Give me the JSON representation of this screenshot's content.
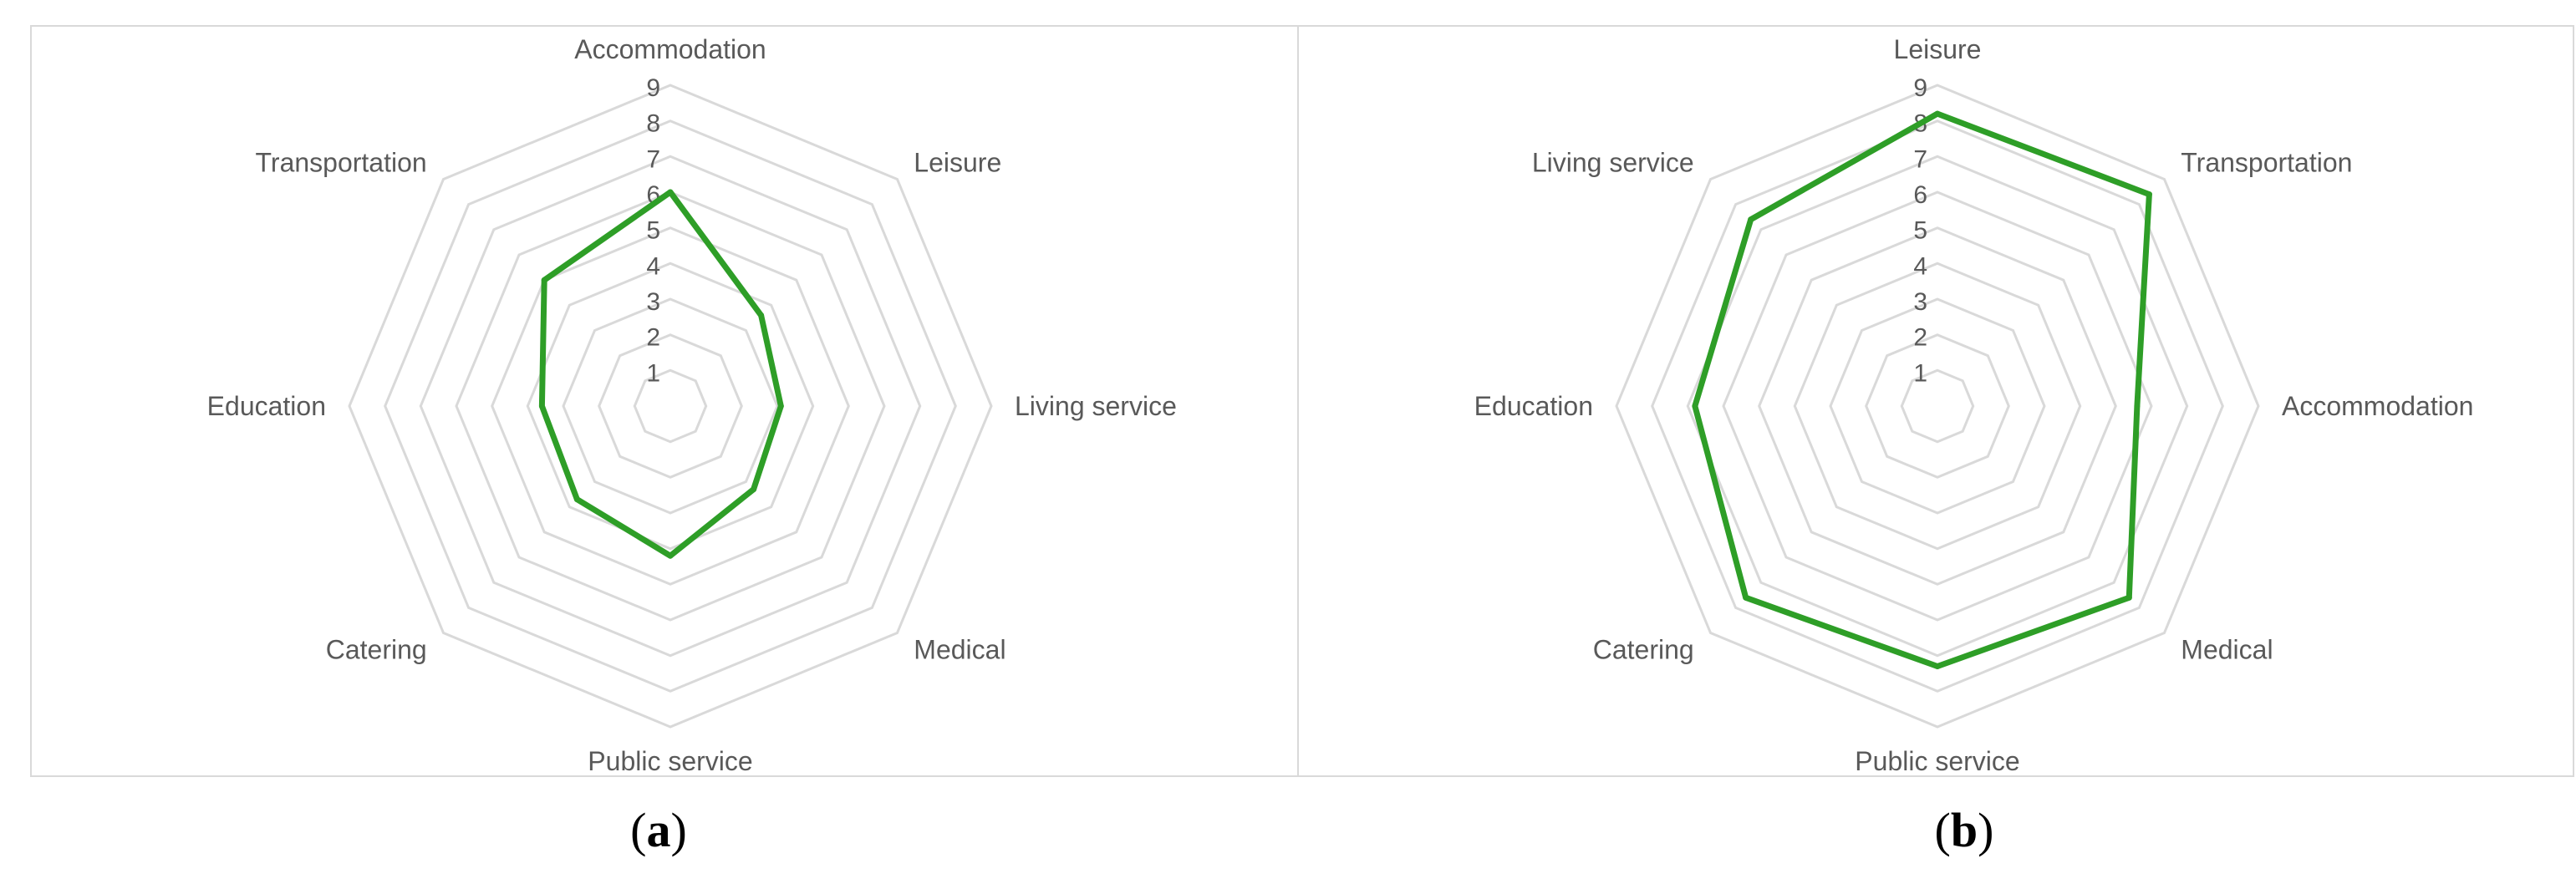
{
  "chart_data": [
    {
      "type": "radar",
      "ticks": [
        "1",
        "2",
        "3",
        "4",
        "5",
        "6",
        "7",
        "8",
        "9"
      ],
      "rmax": 9,
      "axes": [
        "Accommodation",
        "Leisure",
        "Living service",
        "Medical",
        "Public service",
        "Catering",
        "Education",
        "Transportation"
      ],
      "values": [
        6.0,
        3.6,
        3.1,
        3.3,
        4.2,
        3.7,
        3.6,
        5.0
      ],
      "line_color": "#2e9e27",
      "grid_color": "#d9d9d9",
      "label_color": "#595959",
      "caption": "a"
    },
    {
      "type": "radar",
      "ticks": [
        "1",
        "2",
        "3",
        "4",
        "5",
        "6",
        "7",
        "8",
        "9"
      ],
      "rmax": 9,
      "axes": [
        "Leisure",
        "Transportation",
        "Accommodation",
        "Medical",
        "Public service",
        "Catering",
        "Education",
        "Living service"
      ],
      "values": [
        8.2,
        8.4,
        5.6,
        7.6,
        7.3,
        7.6,
        6.8,
        7.4
      ],
      "line_color": "#2e9e27",
      "grid_color": "#d9d9d9",
      "label_color": "#595959",
      "caption": "b"
    }
  ]
}
